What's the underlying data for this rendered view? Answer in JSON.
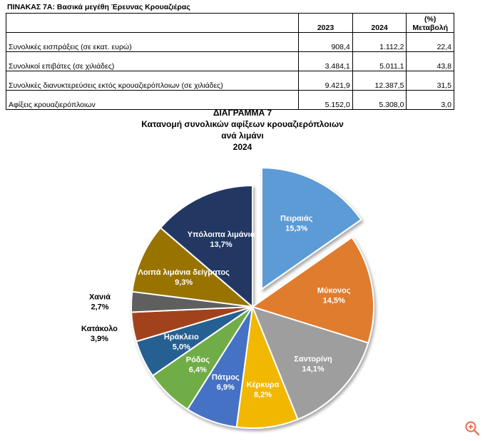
{
  "table": {
    "title": "ΠΙΝΑΚΑΣ 7Α: Βασικά μεγέθη Έρευνας Κρουαζιέρας",
    "headers": [
      "",
      "2023",
      "2024",
      "(%)\nΜεταβολή"
    ],
    "rows": [
      {
        "label": "Συνολικές εισπράξεις (σε εκατ. ευρώ)",
        "v2023": "908,4",
        "v2024": "1.112,2",
        "change": "22,4"
      },
      {
        "label": "Συνολικοί επιβάτες (σε χιλιάδες)",
        "v2023": "3.484,1",
        "v2024": "5.011,1",
        "change": "43,8"
      },
      {
        "label": "Συνολικές διανυκτερεύσεις εκτός κρουαζιερόπλοιων (σε χιλιάδες)",
        "v2023": "9.421,9",
        "v2024": "12.387,5",
        "change": "31,5"
      },
      {
        "label": "Αφίξεις κρουαζιερόπλοιων",
        "v2023": "5.152,0",
        "v2024": "5.308,0",
        "change": "3,0"
      }
    ]
  },
  "chart_titles": {
    "line1": "ΔΙΑΓΡΑΜΜΑ 7",
    "line2": "Κατανομή συνολικών αφίξεων κρουαζιερόπλοιων",
    "line3": "ανά λιμάνι",
    "line4": "2024"
  },
  "chart_data": {
    "type": "pie",
    "exploded": [
      "Πειραιάς"
    ],
    "slices": [
      {
        "label": "Πειραιάς",
        "value_label": "15,3%",
        "value": 15.3,
        "color": "#5b9bd5"
      },
      {
        "label": "Μύκονος",
        "value_label": "14,5%",
        "value": 14.5,
        "color": "#e07b2e"
      },
      {
        "label": "Σαντορίνη",
        "value_label": "14,1%",
        "value": 14.1,
        "color": "#9e9e9e"
      },
      {
        "label": "Κέρκυρα",
        "value_label": "8,2%",
        "value": 8.2,
        "color": "#f2b705"
      },
      {
        "label": "Πάτμος",
        "value_label": "6,9%",
        "value": 6.9,
        "color": "#4472c4"
      },
      {
        "label": "Ρόδος",
        "value_label": "6,4%",
        "value": 6.4,
        "color": "#70ad47"
      },
      {
        "label": "Ηράκλειο",
        "value_label": "5,0%",
        "value": 5.0,
        "color": "#255e91"
      },
      {
        "label": "Κατάκολο",
        "value_label": "3,9%",
        "value": 3.9,
        "color": "#a2431a"
      },
      {
        "label": "Χανιά",
        "value_label": "2,7%",
        "value": 2.7,
        "color": "#5e5e5e"
      },
      {
        "label": "Λοιπά λιμάνια δείγματος",
        "value_label": "9,3%",
        "value": 9.3,
        "color": "#997300"
      },
      {
        "label": "Υπόλοιπα λιμάνια",
        "value_label": "13,7%",
        "value": 13.7,
        "color": "#203864"
      }
    ]
  },
  "icons": {
    "zoom": "zoom-in-icon",
    "zoom_color": "#e8775a"
  }
}
